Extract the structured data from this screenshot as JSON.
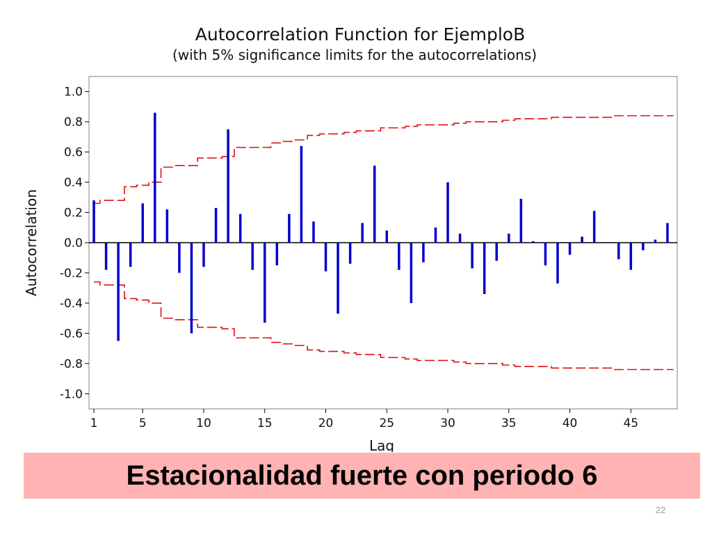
{
  "chart_data": {
    "type": "bar",
    "title": "Autocorrelation Function for EjemploB",
    "subtitle": "(with 5% significance limits for the autocorrelations)",
    "xlabel": "Lag",
    "ylabel": "Autocorrelation",
    "xlim": [
      0.6,
      48.8
    ],
    "ylim": [
      -1.1,
      1.1
    ],
    "x_ticks": [
      1,
      5,
      10,
      15,
      20,
      25,
      30,
      35,
      40,
      45
    ],
    "y_ticks": [
      1.0,
      0.8,
      0.6,
      0.4,
      0.2,
      0.0,
      -0.2,
      -0.4,
      -0.6,
      -0.8,
      -1.0
    ],
    "y_tick_labels": [
      "1.0",
      "0.8",
      "0.6",
      "0.4",
      "0.2",
      "0.0",
      "-0.2",
      "-0.4",
      "-0.6",
      "-0.8",
      "-1.0"
    ],
    "grid": false,
    "lags": [
      1,
      2,
      3,
      4,
      5,
      6,
      7,
      8,
      9,
      10,
      11,
      12,
      13,
      14,
      15,
      16,
      17,
      18,
      19,
      20,
      21,
      22,
      23,
      24,
      25,
      26,
      27,
      28,
      29,
      30,
      31,
      32,
      33,
      34,
      35,
      36,
      37,
      38,
      39,
      40,
      41,
      42,
      43,
      44,
      45,
      46,
      47,
      48
    ],
    "values": [
      0.28,
      -0.18,
      -0.65,
      -0.16,
      0.26,
      0.86,
      0.22,
      -0.2,
      -0.6,
      -0.16,
      0.23,
      0.75,
      0.19,
      -0.18,
      -0.53,
      -0.15,
      0.19,
      0.64,
      0.14,
      -0.19,
      -0.47,
      -0.14,
      0.13,
      0.51,
      0.08,
      -0.18,
      -0.4,
      -0.13,
      0.1,
      0.4,
      0.06,
      -0.17,
      -0.34,
      -0.12,
      0.06,
      0.29,
      0.01,
      -0.15,
      -0.27,
      -0.08,
      0.04,
      0.21,
      0.0,
      -0.11,
      -0.18,
      -0.05,
      0.02,
      0.13
    ],
    "limits": [
      0.26,
      0.28,
      0.28,
      0.37,
      0.38,
      0.4,
      0.5,
      0.51,
      0.51,
      0.56,
      0.56,
      0.57,
      0.63,
      0.63,
      0.63,
      0.66,
      0.67,
      0.68,
      0.71,
      0.72,
      0.72,
      0.73,
      0.74,
      0.74,
      0.76,
      0.76,
      0.77,
      0.78,
      0.78,
      0.78,
      0.79,
      0.8,
      0.8,
      0.8,
      0.81,
      0.82,
      0.82,
      0.82,
      0.83,
      0.83,
      0.83,
      0.83,
      0.83,
      0.84,
      0.84,
      0.84,
      0.84,
      0.84
    ],
    "bar_color": "#0000cc",
    "limit_color": "#dd1111"
  },
  "banner": {
    "text": "Estacionalidad fuerte con periodo 6",
    "color": "#ffb3b3"
  },
  "page_number": "22"
}
